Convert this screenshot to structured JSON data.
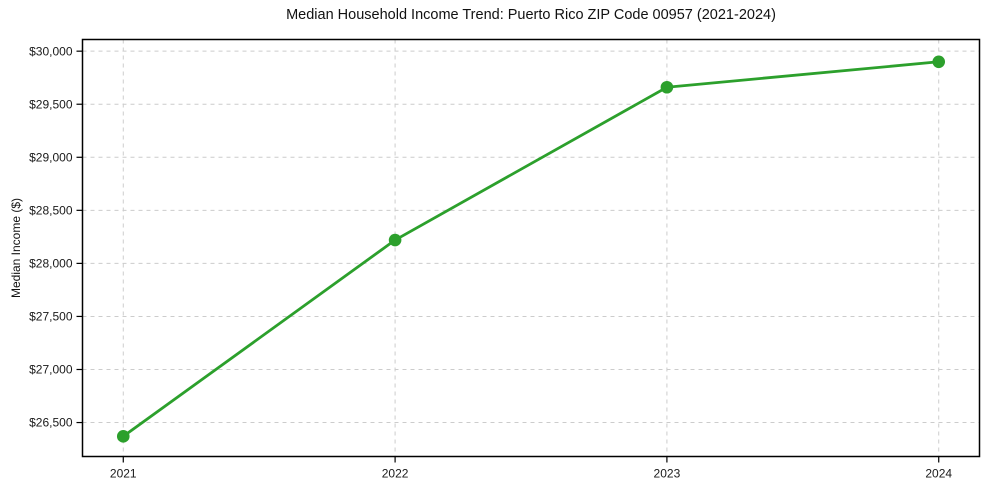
{
  "chart": {
    "title": "Median Household Income Trend: Puerto Rico ZIP Code 00957 (2021-2024)",
    "ylabel": "Median Income ($)"
  },
  "chart_data": {
    "type": "line",
    "title": "Median Household Income Trend: Puerto Rico ZIP Code 00957 (2021-2024)",
    "xlabel": "",
    "ylabel": "Median Income ($)",
    "x": [
      2021,
      2022,
      2023,
      2024
    ],
    "values": [
      26370,
      28220,
      29660,
      29900
    ],
    "series": [
      {
        "name": "Median Household Income",
        "values": [
          26370,
          28220,
          29660,
          29900
        ]
      }
    ],
    "xticks": [
      2021,
      2022,
      2023,
      2024
    ],
    "xtick_labels": [
      "2021",
      "2022",
      "2023",
      "2024"
    ],
    "yticks": [
      26500,
      27000,
      27500,
      28000,
      28500,
      29000,
      29500,
      30000
    ],
    "ytick_labels": [
      "$26,500",
      "$27,000",
      "$27,500",
      "$28,000",
      "$28,500",
      "$29,000",
      "$29,500",
      "$30,000"
    ],
    "xlim": [
      2020.85,
      2024.15
    ],
    "ylim": [
      26180,
      30110
    ],
    "grid": true,
    "grid_style": "dashed",
    "legend_position": "none",
    "colors": {
      "line": "#2ca02c",
      "marker": "#2ca02c",
      "grid": "#cccccc",
      "spine": "#000000",
      "text": "#1a1a1a"
    }
  }
}
